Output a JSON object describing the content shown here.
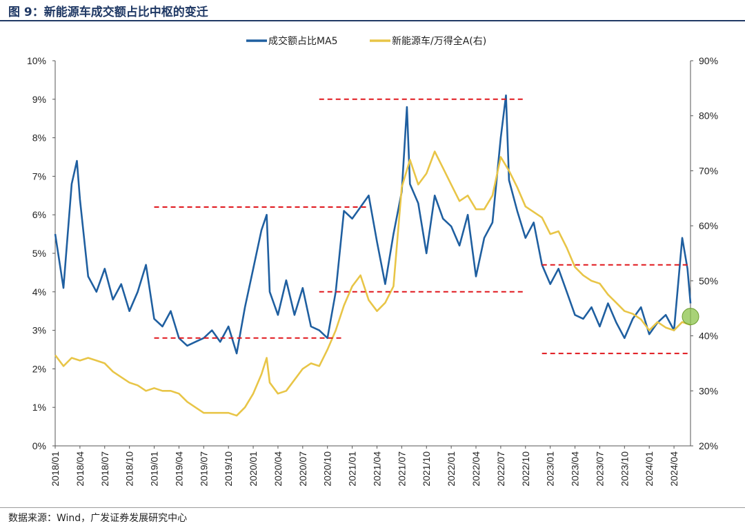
{
  "figure": {
    "title": "图 9：新能源车成交额占比中枢的变迁",
    "source": "数据来源：Wind，广发证券发展研究中心"
  },
  "chart_data": {
    "type": "line",
    "x_ticks": [
      "2018/01",
      "2018/04",
      "2018/07",
      "2018/10",
      "2019/01",
      "2019/04",
      "2019/07",
      "2019/10",
      "2020/01",
      "2020/04",
      "2020/07",
      "2020/10",
      "2021/01",
      "2021/04",
      "2021/07",
      "2021/10",
      "2022/01",
      "2022/04",
      "2022/07",
      "2022/10",
      "2023/01",
      "2023/04",
      "2023/07",
      "2023/10",
      "2024/01",
      "2024/04"
    ],
    "x_range": [
      "2018/01",
      "2024/06"
    ],
    "y_left": {
      "ticks": [
        "0%",
        "1%",
        "2%",
        "3%",
        "4%",
        "5%",
        "6%",
        "7%",
        "8%",
        "9%",
        "10%"
      ],
      "range": [
        0,
        10
      ]
    },
    "y_right": {
      "ticks": [
        "20%",
        "30%",
        "40%",
        "50%",
        "60%",
        "70%",
        "80%",
        "90%"
      ],
      "range": [
        20,
        90
      ]
    },
    "legend_position": "top-center",
    "series": [
      {
        "name": "成交额占比MA5",
        "axis": "left",
        "color": "#1f5fa0",
        "points": [
          [
            "2018/01",
            5.5
          ],
          [
            "2018/02",
            4.1
          ],
          [
            "2018/03",
            6.8
          ],
          [
            "2018/03/20",
            7.4
          ],
          [
            "2018/04",
            6.4
          ],
          [
            "2018/05",
            4.4
          ],
          [
            "2018/06",
            4.0
          ],
          [
            "2018/07",
            4.6
          ],
          [
            "2018/08",
            3.8
          ],
          [
            "2018/09",
            4.2
          ],
          [
            "2018/10",
            3.5
          ],
          [
            "2018/11",
            4.0
          ],
          [
            "2018/12",
            4.7
          ],
          [
            "2019/01",
            3.3
          ],
          [
            "2019/02",
            3.1
          ],
          [
            "2019/03",
            3.5
          ],
          [
            "2019/04",
            2.8
          ],
          [
            "2019/05",
            2.6
          ],
          [
            "2019/06",
            2.7
          ],
          [
            "2019/07",
            2.8
          ],
          [
            "2019/08",
            3.0
          ],
          [
            "2019/09",
            2.7
          ],
          [
            "2019/10",
            3.1
          ],
          [
            "2019/11",
            2.4
          ],
          [
            "2019/12",
            3.6
          ],
          [
            "2020/01",
            4.6
          ],
          [
            "2020/02",
            5.6
          ],
          [
            "2020/02/20",
            6.0
          ],
          [
            "2020/03",
            4.0
          ],
          [
            "2020/04",
            3.4
          ],
          [
            "2020/05",
            4.3
          ],
          [
            "2020/06",
            3.4
          ],
          [
            "2020/07",
            4.1
          ],
          [
            "2020/08",
            3.1
          ],
          [
            "2020/09",
            3.0
          ],
          [
            "2020/10",
            2.8
          ],
          [
            "2020/11",
            4.0
          ],
          [
            "2020/12",
            6.1
          ],
          [
            "2021/01",
            5.9
          ],
          [
            "2021/02",
            6.2
          ],
          [
            "2021/03",
            6.5
          ],
          [
            "2021/04",
            5.3
          ],
          [
            "2021/05",
            4.2
          ],
          [
            "2021/06",
            5.5
          ],
          [
            "2021/07",
            6.6
          ],
          [
            "2021/07/20",
            8.8
          ],
          [
            "2021/08",
            6.8
          ],
          [
            "2021/09",
            6.3
          ],
          [
            "2021/10",
            5.0
          ],
          [
            "2021/11",
            6.5
          ],
          [
            "2021/12",
            5.9
          ],
          [
            "2022/01",
            5.7
          ],
          [
            "2022/02",
            5.2
          ],
          [
            "2022/03",
            6.0
          ],
          [
            "2022/04",
            4.4
          ],
          [
            "2022/05",
            5.4
          ],
          [
            "2022/06",
            5.8
          ],
          [
            "2022/07",
            8.0
          ],
          [
            "2022/07/20",
            9.1
          ],
          [
            "2022/08",
            6.9
          ],
          [
            "2022/09",
            6.1
          ],
          [
            "2022/10",
            5.4
          ],
          [
            "2022/11",
            5.8
          ],
          [
            "2022/12",
            4.7
          ],
          [
            "2023/01",
            4.2
          ],
          [
            "2023/02",
            4.6
          ],
          [
            "2023/03",
            4.0
          ],
          [
            "2023/04",
            3.4
          ],
          [
            "2023/05",
            3.3
          ],
          [
            "2023/06",
            3.6
          ],
          [
            "2023/07",
            3.1
          ],
          [
            "2023/08",
            3.7
          ],
          [
            "2023/09",
            3.2
          ],
          [
            "2023/10",
            2.8
          ],
          [
            "2023/11",
            3.3
          ],
          [
            "2023/12",
            3.6
          ],
          [
            "2024/01",
            2.9
          ],
          [
            "2024/02",
            3.2
          ],
          [
            "2024/03",
            3.4
          ],
          [
            "2024/04",
            3.0
          ],
          [
            "2024/05",
            5.4
          ],
          [
            "2024/05/20",
            4.6
          ],
          [
            "2024/06",
            3.7
          ]
        ]
      },
      {
        "name": "新能源车/万得全A(右)",
        "axis": "right",
        "color": "#e8c547",
        "points": [
          [
            "2018/01",
            36.5
          ],
          [
            "2018/02",
            34.5
          ],
          [
            "2018/03",
            36.0
          ],
          [
            "2018/04",
            35.5
          ],
          [
            "2018/05",
            36.0
          ],
          [
            "2018/06",
            35.5
          ],
          [
            "2018/07",
            35.0
          ],
          [
            "2018/08",
            33.5
          ],
          [
            "2018/09",
            32.5
          ],
          [
            "2018/10",
            31.5
          ],
          [
            "2018/11",
            31.0
          ],
          [
            "2018/12",
            30.0
          ],
          [
            "2019/01",
            30.5
          ],
          [
            "2019/02",
            30.0
          ],
          [
            "2019/03",
            30.0
          ],
          [
            "2019/04",
            29.5
          ],
          [
            "2019/05",
            28.0
          ],
          [
            "2019/06",
            27.0
          ],
          [
            "2019/07",
            26.0
          ],
          [
            "2019/08",
            26.0
          ],
          [
            "2019/09",
            26.0
          ],
          [
            "2019/10",
            26.0
          ],
          [
            "2019/11",
            25.5
          ],
          [
            "2019/12",
            27.0
          ],
          [
            "2020/01",
            29.5
          ],
          [
            "2020/02",
            33.0
          ],
          [
            "2020/02/20",
            36.0
          ],
          [
            "2020/03",
            31.5
          ],
          [
            "2020/04",
            29.5
          ],
          [
            "2020/05",
            30.0
          ],
          [
            "2020/06",
            32.0
          ],
          [
            "2020/07",
            34.0
          ],
          [
            "2020/08",
            35.0
          ],
          [
            "2020/09",
            34.5
          ],
          [
            "2020/10",
            37.5
          ],
          [
            "2020/11",
            41.0
          ],
          [
            "2020/12",
            45.5
          ],
          [
            "2021/01",
            49.0
          ],
          [
            "2021/02",
            51.0
          ],
          [
            "2021/03",
            46.5
          ],
          [
            "2021/04",
            44.5
          ],
          [
            "2021/05",
            46.0
          ],
          [
            "2021/06",
            49.0
          ],
          [
            "2021/07",
            67.0
          ],
          [
            "2021/08",
            72.0
          ],
          [
            "2021/09",
            67.5
          ],
          [
            "2021/10",
            69.5
          ],
          [
            "2021/11",
            73.5
          ],
          [
            "2021/12",
            70.5
          ],
          [
            "2022/01",
            67.5
          ],
          [
            "2022/02",
            64.5
          ],
          [
            "2022/03",
            65.5
          ],
          [
            "2022/04",
            63.0
          ],
          [
            "2022/05",
            63.0
          ],
          [
            "2022/06",
            65.5
          ],
          [
            "2022/07",
            72.5
          ],
          [
            "2022/08",
            70.0
          ],
          [
            "2022/09",
            67.0
          ],
          [
            "2022/10",
            63.5
          ],
          [
            "2022/11",
            62.5
          ],
          [
            "2022/12",
            61.5
          ],
          [
            "2023/01",
            58.5
          ],
          [
            "2023/02",
            59.0
          ],
          [
            "2023/03",
            56.0
          ],
          [
            "2023/04",
            52.5
          ],
          [
            "2023/05",
            51.0
          ],
          [
            "2023/06",
            50.0
          ],
          [
            "2023/07",
            49.5
          ],
          [
            "2023/08",
            47.5
          ],
          [
            "2023/09",
            46.0
          ],
          [
            "2023/10",
            44.5
          ],
          [
            "2023/11",
            44.0
          ],
          [
            "2023/12",
            43.0
          ],
          [
            "2024/01",
            41.0
          ],
          [
            "2024/02",
            42.5
          ],
          [
            "2024/03",
            41.5
          ],
          [
            "2024/04",
            41.0
          ],
          [
            "2024/05",
            42.5
          ],
          [
            "2024/06",
            42.0
          ]
        ]
      }
    ],
    "reference_lines": [
      {
        "from": "2019/01",
        "to": "2021/03",
        "axis": "left",
        "y": 6.2
      },
      {
        "from": "2019/01",
        "to": "2020/12",
        "axis": "left",
        "y": 2.8
      },
      {
        "from": "2020/09",
        "to": "2022/10",
        "axis": "left",
        "y": 9.0
      },
      {
        "from": "2020/09",
        "to": "2022/10",
        "axis": "left",
        "y": 4.0
      },
      {
        "from": "2022/12",
        "to": "2024/06",
        "axis": "left",
        "y": 4.7
      },
      {
        "from": "2022/12",
        "to": "2024/06",
        "axis": "left",
        "y": 2.4
      }
    ],
    "marker": {
      "date": "2024/06",
      "axis": "right",
      "y": 43.5,
      "color": "#8bc34a"
    }
  }
}
